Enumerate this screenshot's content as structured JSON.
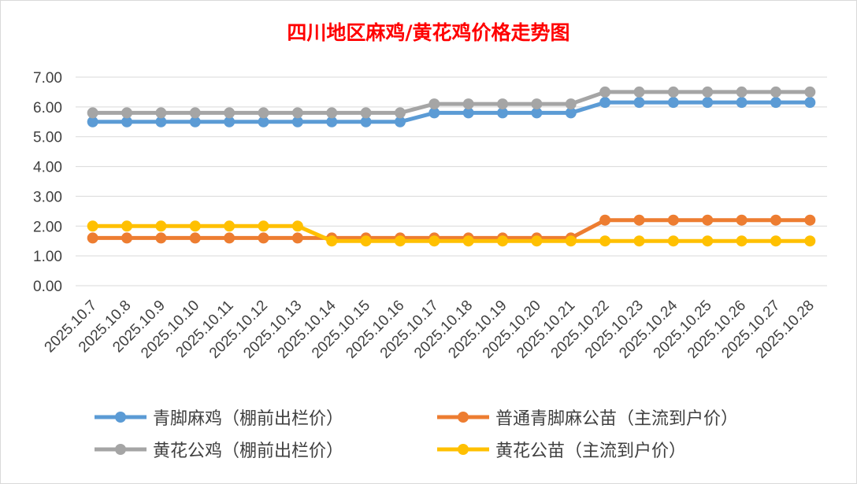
{
  "chart_data": {
    "type": "line",
    "title": "四川地区麻鸡/黄花鸡价格走势图",
    "categories": [
      "2025.10.7",
      "2025.10.8",
      "2025.10.9",
      "2025.10.10",
      "2025.10.11",
      "2025.10.12",
      "2025.10.13",
      "2025.10.14",
      "2025.10.15",
      "2025.10.16",
      "2025.10.17",
      "2025.10.18",
      "2025.10.19",
      "2025.10.20",
      "2025.10.21",
      "2025.10.22",
      "2025.10.23",
      "2025.10.24",
      "2025.10.25",
      "2025.10.26",
      "2025.10.27",
      "2025.10.28"
    ],
    "ylim": [
      0,
      7
    ],
    "yticks": [
      "0.00",
      "1.00",
      "2.00",
      "3.00",
      "4.00",
      "5.00",
      "6.00",
      "7.00"
    ],
    "grid": true,
    "legend_position": "bottom",
    "series": [
      {
        "name": "青脚麻鸡（棚前出栏价）",
        "color": "#5b9bd5",
        "values": [
          5.5,
          5.5,
          5.5,
          5.5,
          5.5,
          5.5,
          5.5,
          5.5,
          5.5,
          5.5,
          5.8,
          5.8,
          5.8,
          5.8,
          5.8,
          6.15,
          6.15,
          6.15,
          6.15,
          6.15,
          6.15,
          6.15
        ]
      },
      {
        "name": "普通青脚麻公苗（主流到户价）",
        "color": "#ed7d31",
        "values": [
          1.6,
          1.6,
          1.6,
          1.6,
          1.6,
          1.6,
          1.6,
          1.6,
          1.6,
          1.6,
          1.6,
          1.6,
          1.6,
          1.6,
          1.6,
          2.2,
          2.2,
          2.2,
          2.2,
          2.2,
          2.2,
          2.2
        ]
      },
      {
        "name": "黄花公鸡（棚前出栏价）",
        "color": "#a5a5a5",
        "values": [
          5.8,
          5.8,
          5.8,
          5.8,
          5.8,
          5.8,
          5.8,
          5.8,
          5.8,
          5.8,
          6.1,
          6.1,
          6.1,
          6.1,
          6.1,
          6.5,
          6.5,
          6.5,
          6.5,
          6.5,
          6.5,
          6.5
        ]
      },
      {
        "name": "黄花公苗（主流到户价）",
        "color": "#ffc000",
        "values": [
          2.0,
          2.0,
          2.0,
          2.0,
          2.0,
          2.0,
          2.0,
          1.5,
          1.5,
          1.5,
          1.5,
          1.5,
          1.5,
          1.5,
          1.5,
          1.5,
          1.5,
          1.5,
          1.5,
          1.5,
          1.5,
          1.5
        ]
      }
    ]
  }
}
